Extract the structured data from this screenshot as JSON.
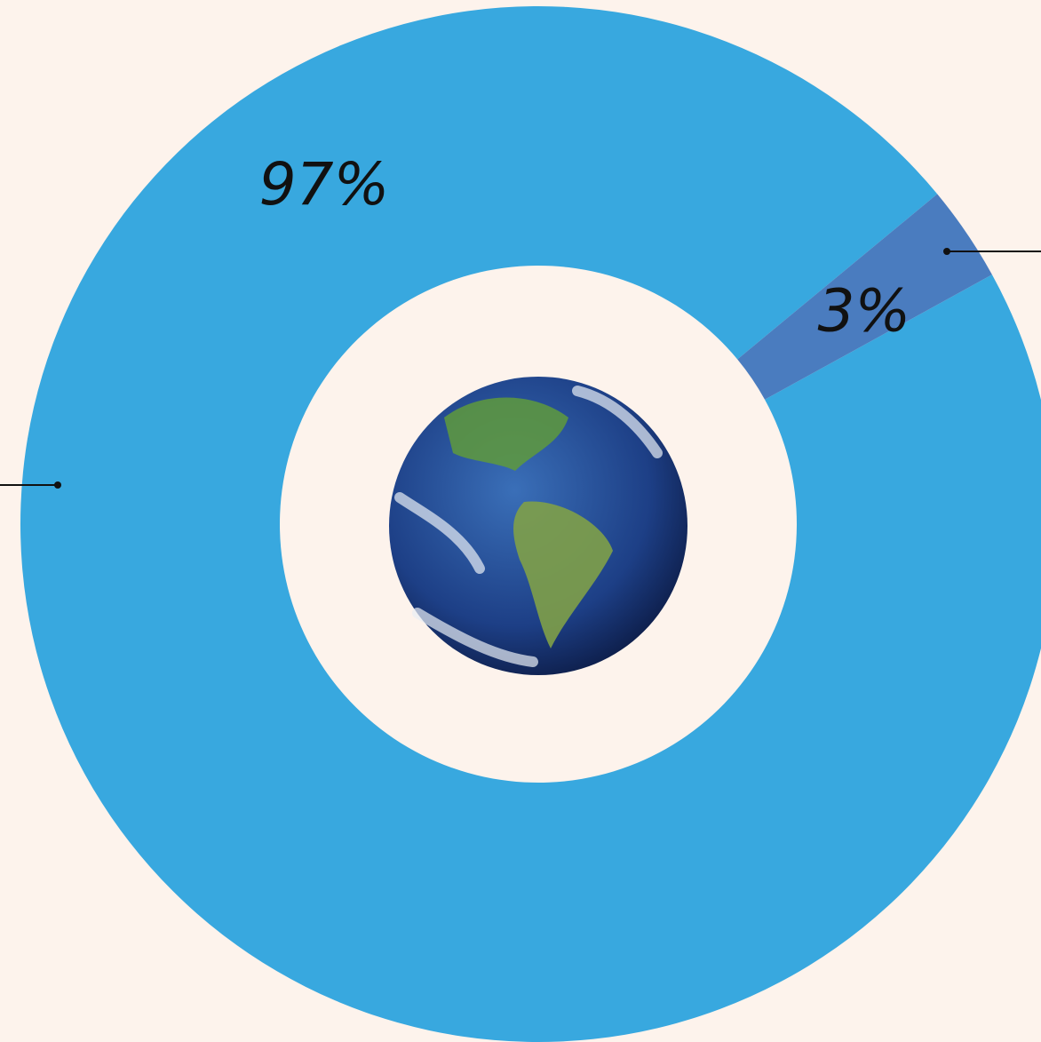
{
  "chart_data": {
    "type": "donut",
    "values": [
      97,
      3
    ],
    "value_labels": [
      "97%",
      "3%"
    ],
    "colors": [
      "#38a8df",
      "#4a7cbf"
    ]
  }
}
